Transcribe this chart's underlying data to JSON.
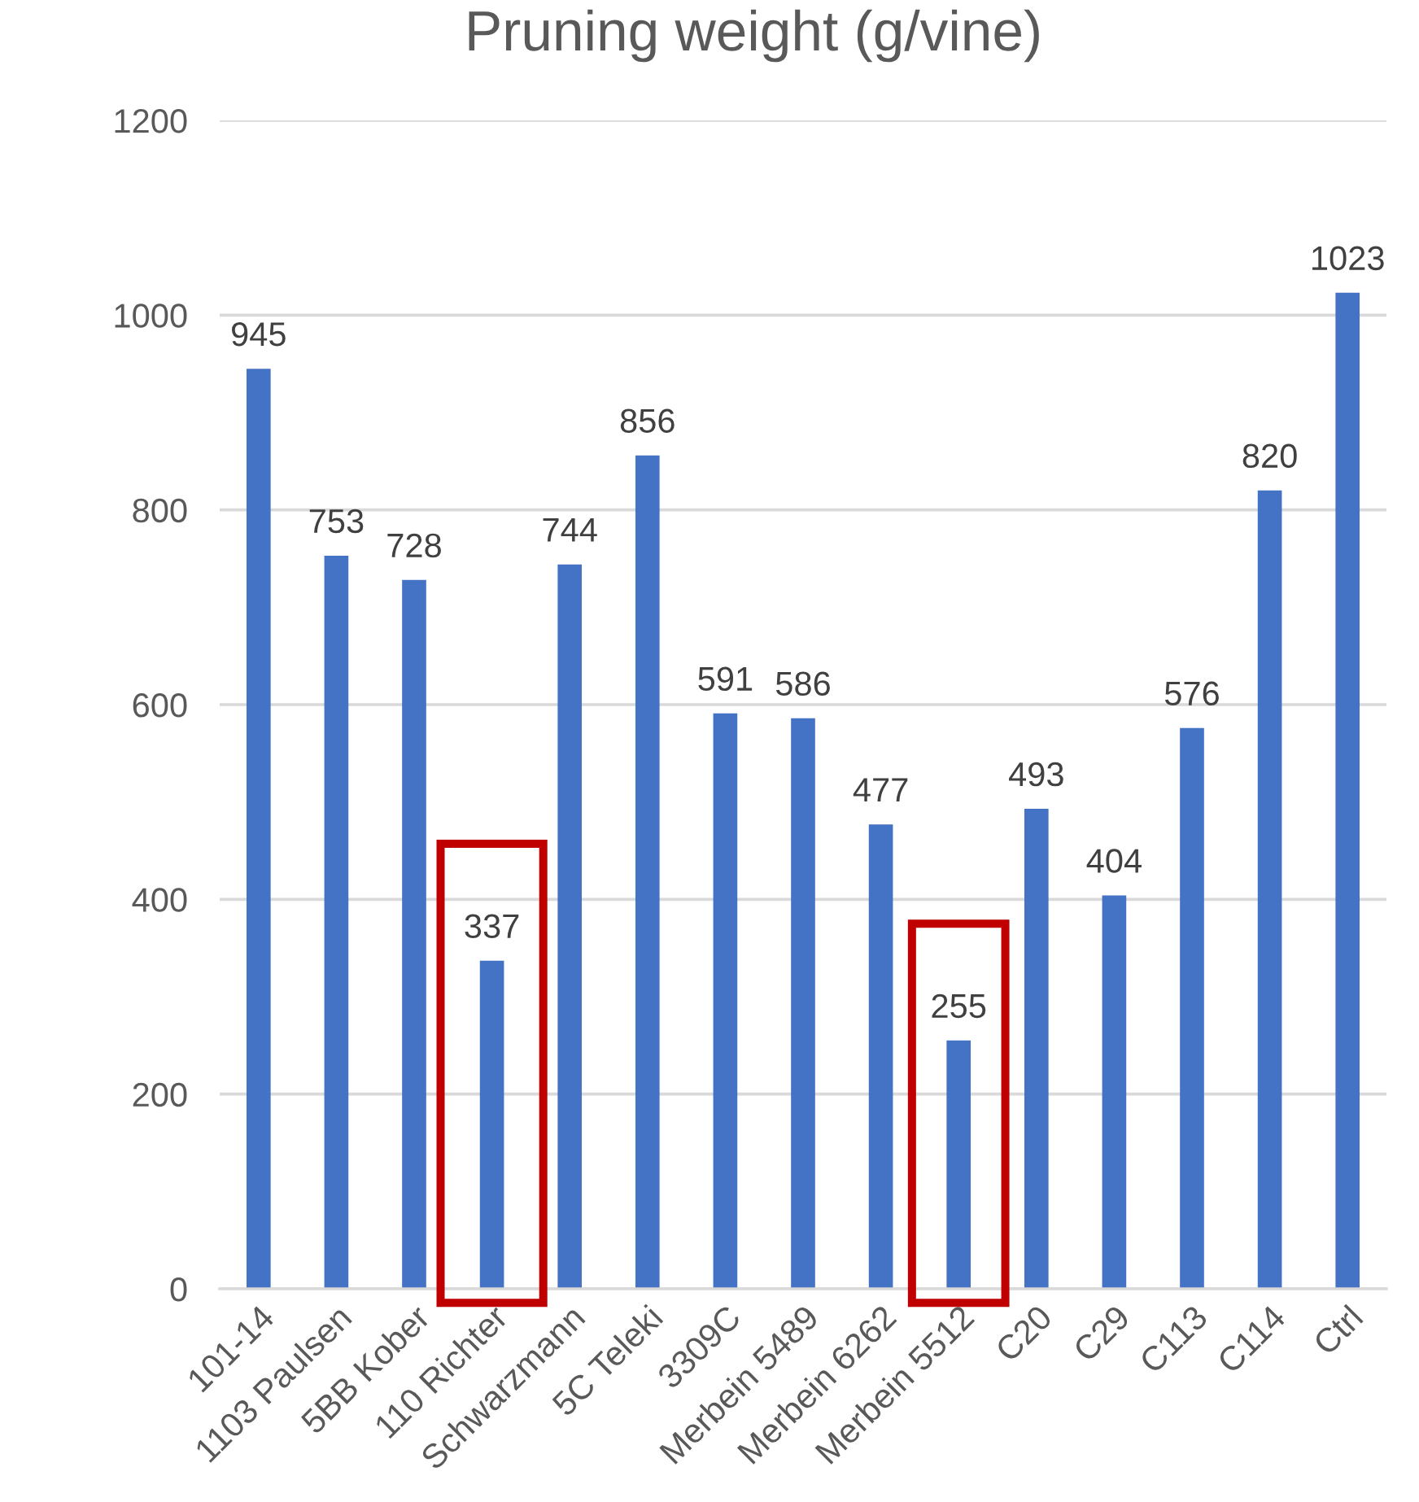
{
  "chart_data": {
    "type": "bar",
    "title": "Pruning weight (g/vine)",
    "categories": [
      "101-14",
      "1103 Paulsen",
      "5BB Kober",
      "110 Richter",
      "Schwarzmann",
      "5C Teleki",
      "3309C",
      "Merbein 5489",
      "Merbein 6262",
      "Merbein 5512",
      "C20",
      "C29",
      "C113",
      "C114",
      "Ctrl"
    ],
    "values": [
      945,
      753,
      728,
      337,
      744,
      856,
      591,
      586,
      477,
      255,
      493,
      404,
      576,
      820,
      1023
    ],
    "color": "#4472c4",
    "ylim": [
      0,
      1200
    ],
    "yticks": [
      0,
      200,
      400,
      600,
      800,
      1000,
      1200
    ],
    "grid": "y",
    "data_labels": true
  }
}
